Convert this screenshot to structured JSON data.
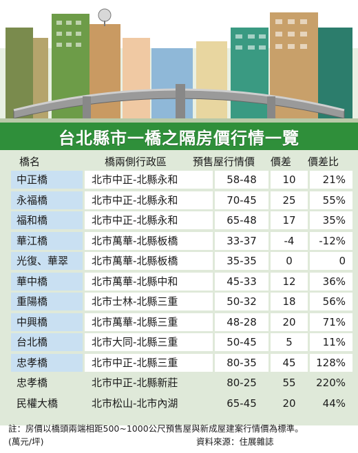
{
  "title": "台北縣市一橋之隔房價行情一覽",
  "chart_data": {
    "type": "table",
    "columns": [
      "橋名",
      "橋兩側行政區",
      "預售屋行情價",
      "價差",
      "價差比"
    ],
    "rows": [
      {
        "name": "中正橋",
        "area": "北市中正-北縣永和",
        "price": "58-48",
        "diff": "10",
        "pct": "21%"
      },
      {
        "name": "永福橋",
        "area": "北市中正-北縣永和",
        "price": "70-45",
        "diff": "25",
        "pct": "55%"
      },
      {
        "name": "福和橋",
        "area": "北市中正-北縣永和",
        "price": "65-48",
        "diff": "17",
        "pct": "35%"
      },
      {
        "name": "華江橋",
        "area": "北市萬華-北縣板橋",
        "price": "33-37",
        "diff": "-4",
        "pct": "-12%"
      },
      {
        "name": "光復、華翠",
        "area": "北市萬華-北縣板橋",
        "price": "35-35",
        "diff": "0",
        "pct": "0"
      },
      {
        "name": "華中橋",
        "area": "北市萬華-北縣中和",
        "price": "45-33",
        "diff": "12",
        "pct": "36%"
      },
      {
        "name": "重陽橋",
        "area": "北市士林-北縣三重",
        "price": "50-32",
        "diff": "18",
        "pct": "56%"
      },
      {
        "name": "中興橋",
        "area": "北市萬華-北縣三重",
        "price": "48-28",
        "diff": "20",
        "pct": "71%"
      },
      {
        "name": "台北橋",
        "area": "北市大同-北縣三重",
        "price": "50-45",
        "diff": "5",
        "pct": "11%"
      },
      {
        "name": "忠孝橋",
        "area": "北市中正-北縣三重",
        "price": "80-35",
        "diff": "45",
        "pct": "128%"
      },
      {
        "name": "忠孝橋",
        "area": "北市中正-北縣新莊",
        "price": "80-25",
        "diff": "55",
        "pct": "220%"
      },
      {
        "name": "民權大橋",
        "area": "北市松山-北市內湖",
        "price": "65-45",
        "diff": "20",
        "pct": "44%"
      }
    ]
  },
  "note": "註：房價以橋頭兩端相距500~1000公尺預售屋與新成屋建案行情價為標準。",
  "unit": "(萬元/坪)",
  "source": "資料來源：住展雜誌",
  "colors": {
    "banner": "#2f8f3a",
    "table_bg": "#dfe9d9",
    "name_cell": "#c9e0f2",
    "bridge": "#8a8a8a",
    "sky": "#ffffff"
  }
}
